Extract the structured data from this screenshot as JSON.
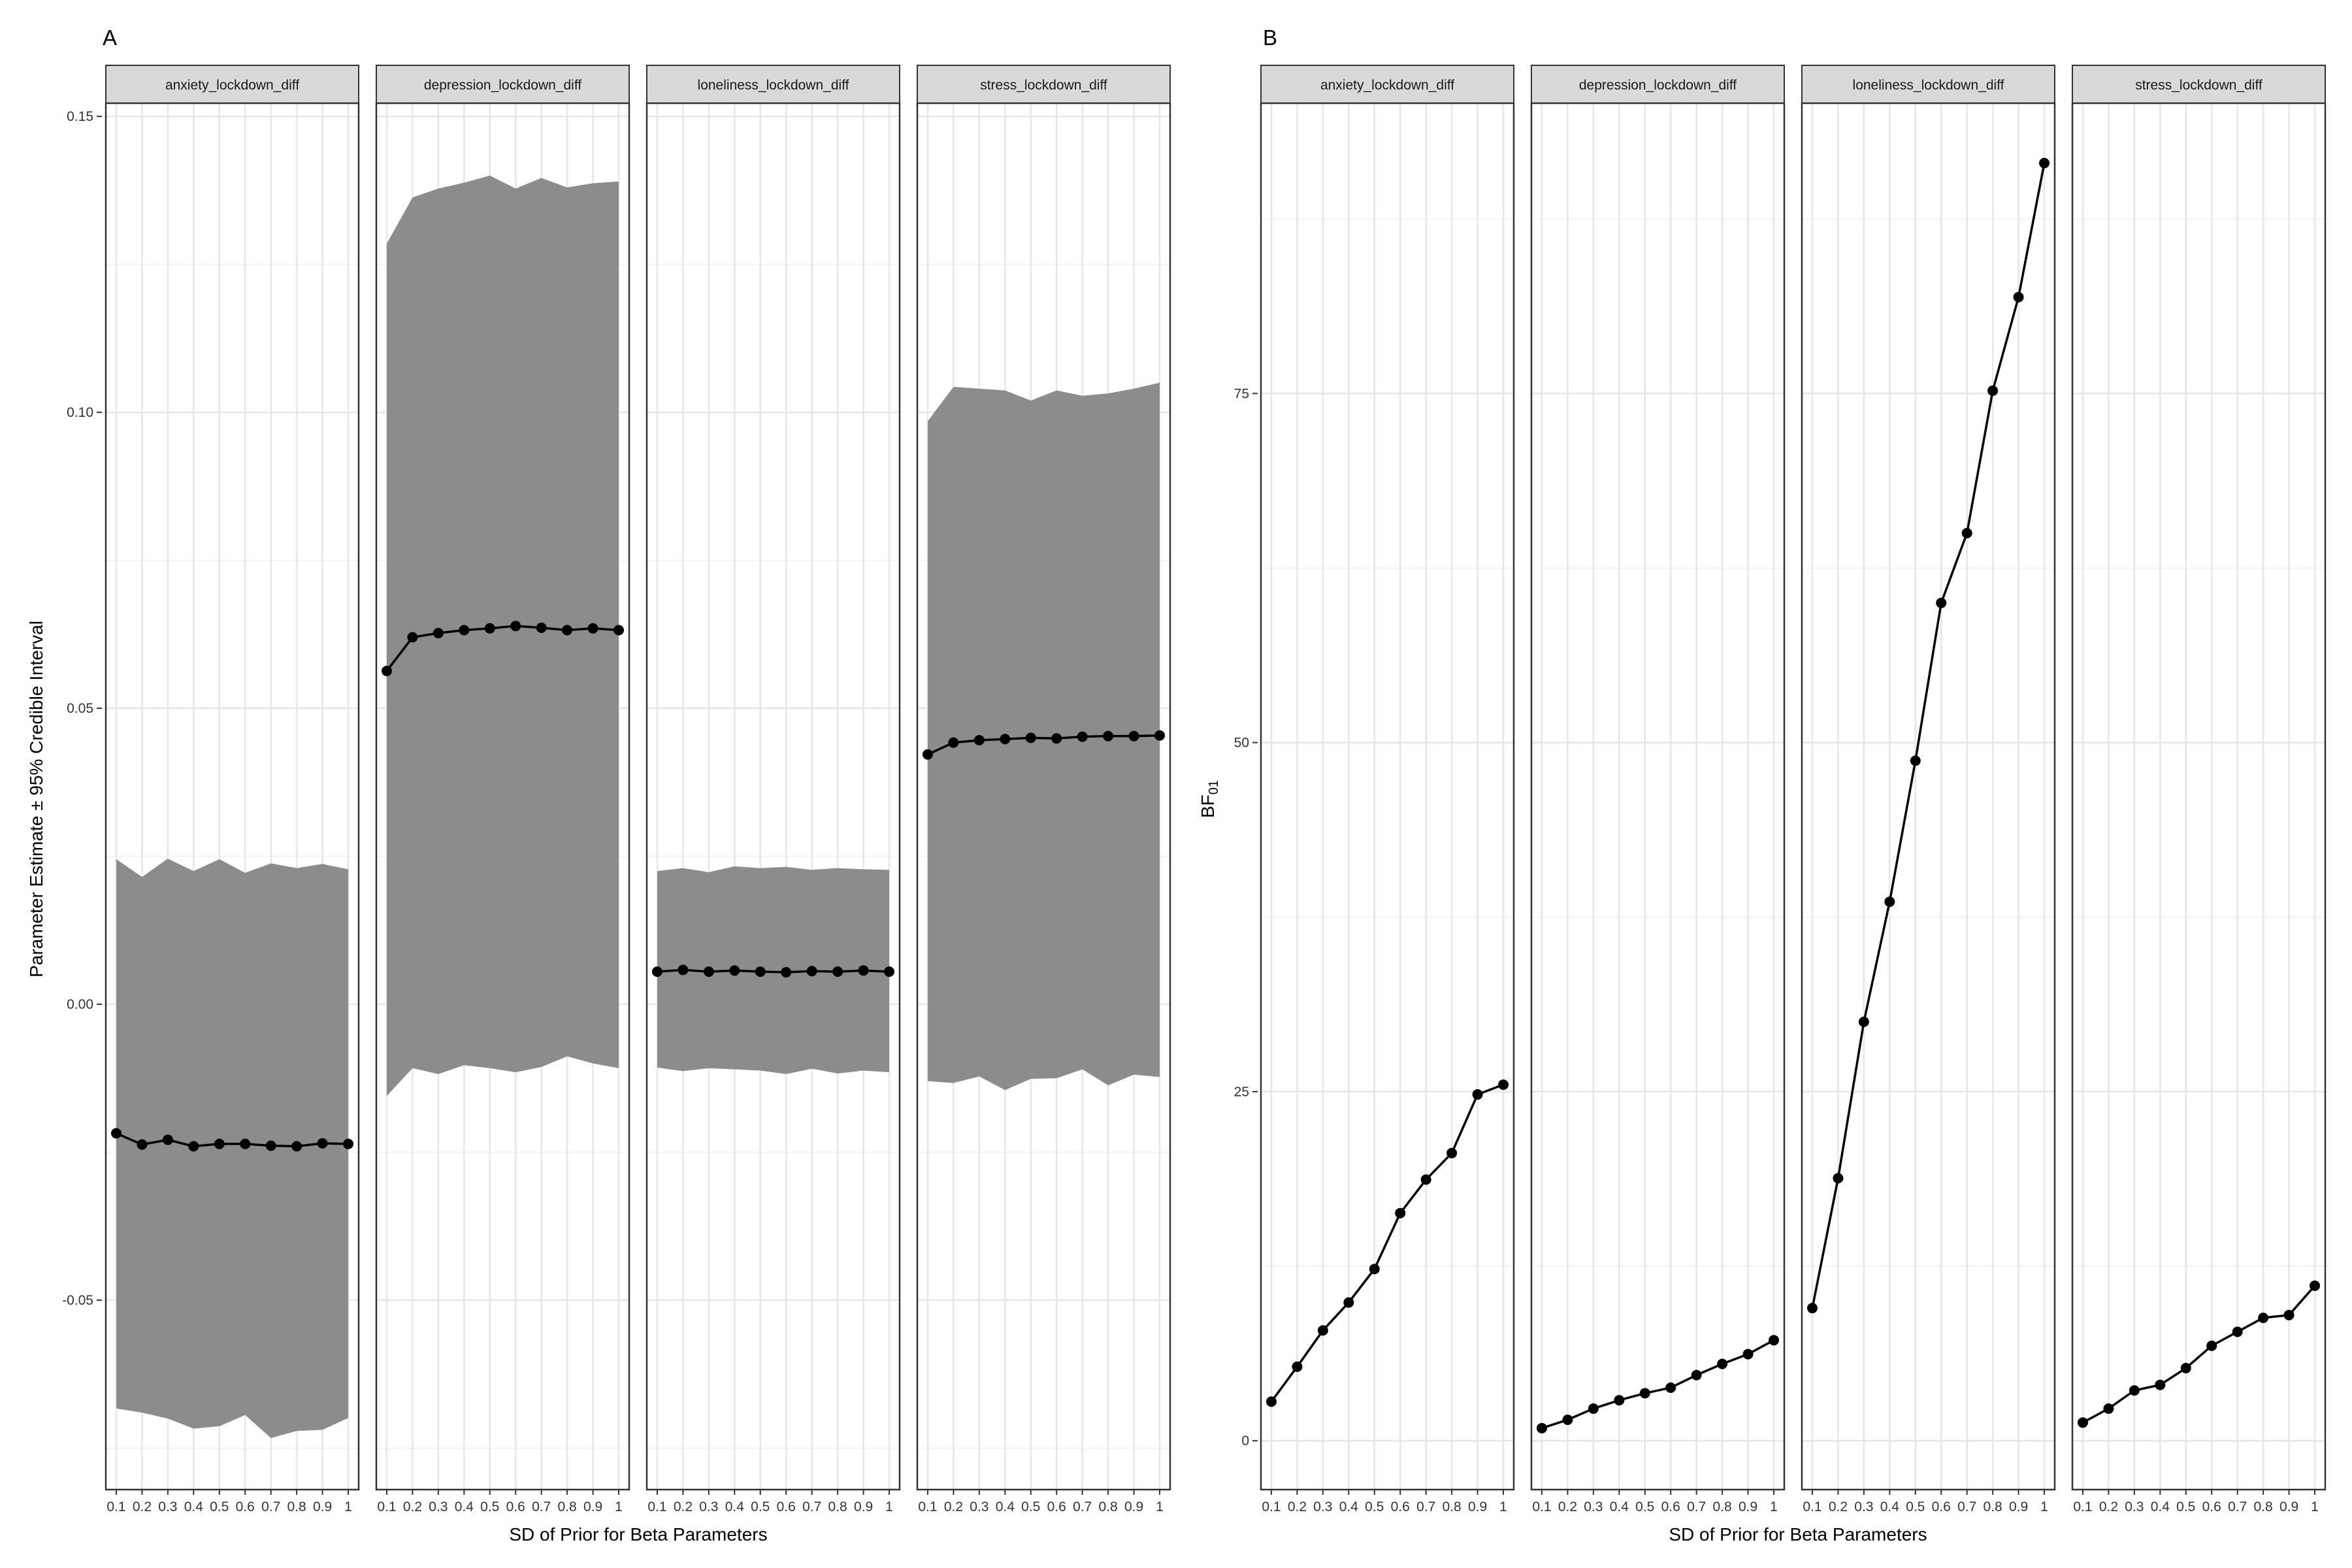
{
  "figure": {
    "panel_tags": [
      "A",
      "B"
    ],
    "colors": {
      "ribbon": "#8c8c8c",
      "line": "#000000",
      "grid_major": "#e6e6e6",
      "grid_minor": "#f3f3f3",
      "strip_fill": "#d9d9d9",
      "panel_border": "#333333"
    }
  },
  "chart_data": [
    {
      "type": "line",
      "panel": "A",
      "xlabel": "SD of Prior for Beta Parameters",
      "ylabel": "Parameter Estimate ± 95% Credible Interval",
      "x": [
        0.1,
        0.2,
        0.3,
        0.4,
        0.5,
        0.6,
        0.7,
        0.8,
        0.9,
        1
      ],
      "x_tick_labels": [
        "0.1",
        "0.2",
        "0.3",
        "0.4",
        "0.5",
        "0.6",
        "0.7",
        "0.8",
        "0.9",
        "1"
      ],
      "ylim": [
        -0.082,
        0.152
      ],
      "y_ticks": [
        -0.05,
        0.0,
        0.05,
        0.1,
        0.15
      ],
      "y_tick_labels": [
        "-0.05",
        "0.00",
        "0.05",
        "0.10",
        "0.15"
      ],
      "ribbon": "95% credible interval",
      "grid": true,
      "facets": [
        {
          "label": "anxiety_lockdown_diff",
          "estimate": [
            -0.0218,
            -0.0237,
            -0.0229,
            -0.024,
            -0.0236,
            -0.0236,
            -0.0239,
            -0.024,
            -0.0235,
            -0.0236
          ],
          "lower": [
            -0.0683,
            -0.069,
            -0.07,
            -0.0717,
            -0.0713,
            -0.0694,
            -0.0733,
            -0.0721,
            -0.0719,
            -0.0699
          ],
          "upper": [
            0.0245,
            0.0215,
            0.0246,
            0.0225,
            0.0245,
            0.0222,
            0.0238,
            0.023,
            0.0237,
            0.0228
          ]
        },
        {
          "label": "depression_lockdown_diff",
          "estimate": [
            0.0563,
            0.062,
            0.0627,
            0.0632,
            0.0635,
            0.0639,
            0.0636,
            0.0632,
            0.0635,
            0.0632
          ],
          "lower": [
            -0.0155,
            -0.0108,
            -0.0118,
            -0.0103,
            -0.0108,
            -0.0115,
            -0.0106,
            -0.0088,
            -0.01,
            -0.0108
          ],
          "upper": [
            0.1285,
            0.1363,
            0.1378,
            0.1388,
            0.14,
            0.1378,
            0.1396,
            0.138,
            0.1387,
            0.139
          ]
        },
        {
          "label": "loneliness_lockdown_diff",
          "estimate": [
            0.0055,
            0.0058,
            0.0055,
            0.0057,
            0.0055,
            0.0054,
            0.0056,
            0.0055,
            0.0057,
            0.0055
          ],
          "lower": [
            -0.0107,
            -0.0113,
            -0.0108,
            -0.011,
            -0.0112,
            -0.0118,
            -0.0109,
            -0.0117,
            -0.0112,
            -0.0115
          ],
          "upper": [
            0.0225,
            0.023,
            0.0223,
            0.0233,
            0.023,
            0.0232,
            0.0227,
            0.023,
            0.0228,
            0.0227
          ]
        },
        {
          "label": "stress_lockdown_diff",
          "estimate": [
            0.0422,
            0.0442,
            0.0446,
            0.0448,
            0.045,
            0.0449,
            0.0452,
            0.0453,
            0.0453,
            0.0454
          ],
          "lower": [
            -0.013,
            -0.0133,
            -0.0122,
            -0.0145,
            -0.0126,
            -0.0125,
            -0.011,
            -0.0137,
            -0.0119,
            -0.0123
          ],
          "upper": [
            0.0985,
            0.1043,
            0.104,
            0.1037,
            0.102,
            0.1037,
            0.1028,
            0.1032,
            0.104,
            0.105
          ]
        }
      ]
    },
    {
      "type": "line",
      "panel": "B",
      "xlabel": "SD of Prior for Beta Parameters",
      "ylabel": "BF",
      "ylabel_subscript": "01",
      "x": [
        0.1,
        0.2,
        0.3,
        0.4,
        0.5,
        0.6,
        0.7,
        0.8,
        0.9,
        1
      ],
      "x_tick_labels": [
        "0.1",
        "0.2",
        "0.3",
        "0.4",
        "0.5",
        "0.6",
        "0.7",
        "0.8",
        "0.9",
        "1"
      ],
      "ylim": [
        -3.5,
        98.5
      ],
      "y_ticks": [
        0,
        25,
        50,
        75
      ],
      "y_tick_labels": [
        "0",
        "25",
        "50",
        "75"
      ],
      "grid": true,
      "facets": [
        {
          "label": "anxiety_lockdown_diff",
          "values": [
            2.8,
            5.3,
            7.9,
            9.9,
            12.3,
            16.3,
            18.7,
            20.6,
            24.8,
            25.5
          ]
        },
        {
          "label": "depression_lockdown_diff",
          "values": [
            0.9,
            1.5,
            2.3,
            2.9,
            3.4,
            3.8,
            4.7,
            5.5,
            6.2,
            7.2
          ]
        },
        {
          "label": "loneliness_lockdown_diff",
          "values": [
            9.5,
            18.8,
            30.0,
            38.6,
            48.7,
            60.0,
            65.0,
            75.2,
            81.9,
            91.5
          ]
        },
        {
          "label": "stress_lockdown_diff",
          "values": [
            1.3,
            2.3,
            3.6,
            4.0,
            5.2,
            6.8,
            7.8,
            8.8,
            9.0,
            11.1
          ]
        }
      ]
    }
  ]
}
